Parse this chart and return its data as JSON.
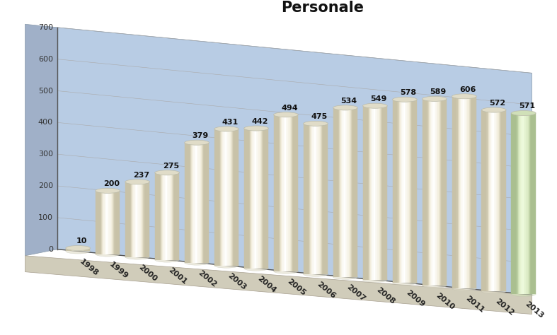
{
  "title": "Personale",
  "categories": [
    "1998",
    "1999",
    "2000",
    "2001",
    "2002",
    "2003",
    "2004",
    "2005",
    "2006",
    "2007",
    "2008",
    "2009",
    "2010",
    "2011",
    "2012",
    "2013"
  ],
  "values": [
    10,
    200,
    237,
    275,
    379,
    431,
    442,
    494,
    475,
    534,
    549,
    578,
    589,
    606,
    572,
    571
  ],
  "bar_color_main": "#F0EBD8",
  "bar_highlight_main": "#FFFFFF",
  "bar_shadow_main": "#C8C2A8",
  "bar_color_green": "#D8E8C0",
  "bar_highlight_green": "#EEFADD",
  "bar_shadow_green": "#AABF90",
  "background_color": "#B8CCE4",
  "bg_wall_color": "#B8CCE4",
  "floor_color": "#D8D4C0",
  "title_fontsize": 15,
  "label_fontsize": 8,
  "value_fontsize": 8,
  "ytick_fontsize": 8,
  "ylim": [
    0,
    700
  ],
  "yticks": [
    0,
    100,
    200,
    300,
    400,
    500,
    600,
    700
  ]
}
